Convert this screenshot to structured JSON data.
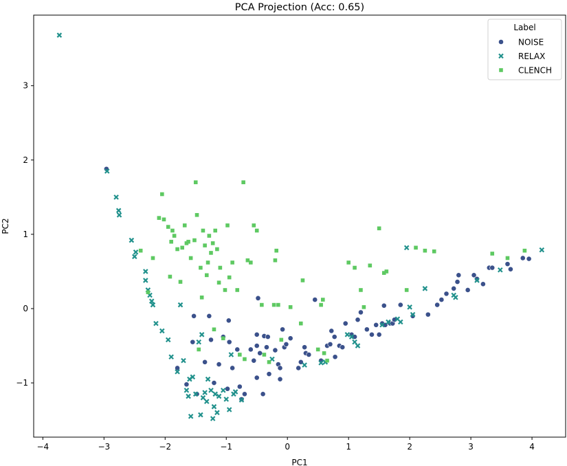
{
  "chart_data": {
    "type": "scatter",
    "title": "PCA Projection (Acc: 0.65)",
    "xlabel": "PC1",
    "ylabel": "PC2",
    "xlim": [
      -4.15,
      4.55
    ],
    "ylim": [
      -1.73,
      3.95
    ],
    "xticks": [
      -4,
      -3,
      -2,
      -1,
      0,
      1,
      2,
      3,
      4
    ],
    "yticks": [
      -1,
      0,
      1,
      2,
      3
    ],
    "grid": false,
    "legend": {
      "title": "Label",
      "position": "top-right"
    },
    "series": [
      {
        "name": "NOISE",
        "marker": "circle",
        "color": "#3b518b",
        "points": [
          [
            -2.96,
            1.88
          ],
          [
            -1.8,
            -0.8
          ],
          [
            -1.55,
            -0.45
          ],
          [
            -1.53,
            -0.1
          ],
          [
            -1.28,
            -0.1
          ],
          [
            -1.65,
            -1.02
          ],
          [
            -1.48,
            -1.15
          ],
          [
            -1.35,
            -0.72
          ],
          [
            -1.25,
            -0.42
          ],
          [
            -1.2,
            -1.0
          ],
          [
            -1.12,
            -0.75
          ],
          [
            -1.05,
            -0.38
          ],
          [
            -0.95,
            -0.45
          ],
          [
            -0.98,
            -1.08
          ],
          [
            -0.96,
            -0.16
          ],
          [
            -0.9,
            -0.8
          ],
          [
            -0.82,
            -0.55
          ],
          [
            -0.78,
            -1.05
          ],
          [
            -0.75,
            -1.22
          ],
          [
            -0.7,
            -1.15
          ],
          [
            -0.6,
            -0.55
          ],
          [
            -0.55,
            -0.7
          ],
          [
            -0.5,
            -0.35
          ],
          [
            -0.5,
            -0.5
          ],
          [
            -0.5,
            -0.93
          ],
          [
            -0.48,
            0.14
          ],
          [
            -0.45,
            -0.6
          ],
          [
            -0.4,
            -1.15
          ],
          [
            -0.38,
            -0.37
          ],
          [
            -0.34,
            -0.52
          ],
          [
            -0.32,
            -0.38
          ],
          [
            -0.3,
            -0.88
          ],
          [
            -0.2,
            -0.56
          ],
          [
            -0.15,
            -0.75
          ],
          [
            -0.12,
            -0.8
          ],
          [
            -0.12,
            -0.95
          ],
          [
            -0.08,
            -0.28
          ],
          [
            -0.05,
            -0.52
          ],
          [
            -0.02,
            -0.48
          ],
          [
            0.05,
            -0.4
          ],
          [
            0.18,
            -0.8
          ],
          [
            0.22,
            -0.72
          ],
          [
            0.28,
            -0.52
          ],
          [
            0.3,
            -0.6
          ],
          [
            0.35,
            -0.62
          ],
          [
            0.45,
            0.12
          ],
          [
            0.55,
            -0.7
          ],
          [
            0.65,
            -0.5
          ],
          [
            0.7,
            -0.48
          ],
          [
            0.72,
            -0.3
          ],
          [
            0.77,
            -0.38
          ],
          [
            0.78,
            -0.65
          ],
          [
            0.85,
            -0.5
          ],
          [
            0.9,
            -0.52
          ],
          [
            0.95,
            -0.2
          ],
          [
            1.05,
            -0.35
          ],
          [
            1.1,
            -0.38
          ],
          [
            1.15,
            -0.15
          ],
          [
            1.2,
            -0.05
          ],
          [
            1.3,
            -0.28
          ],
          [
            1.38,
            -0.35
          ],
          [
            1.45,
            -0.22
          ],
          [
            1.5,
            -0.35
          ],
          [
            1.55,
            -0.2
          ],
          [
            1.58,
            0.04
          ],
          [
            1.6,
            -0.22
          ],
          [
            1.68,
            -0.2
          ],
          [
            1.72,
            -0.2
          ],
          [
            1.75,
            -0.15
          ],
          [
            1.85,
            0.05
          ],
          [
            2.05,
            -0.1
          ],
          [
            2.3,
            -0.08
          ],
          [
            2.45,
            0.05
          ],
          [
            2.52,
            0.12
          ],
          [
            2.6,
            0.2
          ],
          [
            2.72,
            0.27
          ],
          [
            2.78,
            0.36
          ],
          [
            2.8,
            0.45
          ],
          [
            2.95,
            0.25
          ],
          [
            3.05,
            0.45
          ],
          [
            3.1,
            0.4
          ],
          [
            3.2,
            0.33
          ],
          [
            3.3,
            0.55
          ],
          [
            3.35,
            0.55
          ],
          [
            3.6,
            0.6
          ],
          [
            3.65,
            0.53
          ],
          [
            3.85,
            0.68
          ],
          [
            3.95,
            0.67
          ]
        ]
      },
      {
        "name": "RELAX",
        "marker": "x",
        "color": "#21918c",
        "points": [
          [
            -3.73,
            3.68
          ],
          [
            -2.95,
            1.85
          ],
          [
            -2.8,
            1.5
          ],
          [
            -2.76,
            1.32
          ],
          [
            -2.75,
            1.26
          ],
          [
            -2.55,
            0.92
          ],
          [
            -2.5,
            0.7
          ],
          [
            -2.48,
            0.76
          ],
          [
            -2.32,
            0.5
          ],
          [
            -2.32,
            0.38
          ],
          [
            -2.28,
            0.25
          ],
          [
            -2.25,
            0.18
          ],
          [
            -2.22,
            0.1
          ],
          [
            -2.2,
            0.05
          ],
          [
            -2.15,
            -0.2
          ],
          [
            -2.05,
            -0.3
          ],
          [
            -1.95,
            -0.42
          ],
          [
            -1.9,
            -0.65
          ],
          [
            -1.8,
            -0.85
          ],
          [
            -1.75,
            0.05
          ],
          [
            -1.7,
            -0.7
          ],
          [
            -1.65,
            -1.1
          ],
          [
            -1.62,
            -1.18
          ],
          [
            -1.6,
            -0.95
          ],
          [
            -1.58,
            -1.45
          ],
          [
            -1.55,
            -0.92
          ],
          [
            -1.5,
            -1.15
          ],
          [
            -1.45,
            -0.45
          ],
          [
            -1.42,
            -1.43
          ],
          [
            -1.4,
            -0.35
          ],
          [
            -1.38,
            -1.2
          ],
          [
            -1.35,
            -1.13
          ],
          [
            -1.32,
            -1.25
          ],
          [
            -1.3,
            -0.95
          ],
          [
            -1.25,
            -1.1
          ],
          [
            -1.22,
            -1.48
          ],
          [
            -1.2,
            -1.32
          ],
          [
            -1.18,
            -1.15
          ],
          [
            -1.15,
            -1.4
          ],
          [
            -1.12,
            -1.18
          ],
          [
            -1.05,
            -1.1
          ],
          [
            -1.0,
            -1.22
          ],
          [
            -0.95,
            -1.36
          ],
          [
            -0.92,
            -0.62
          ],
          [
            -0.88,
            -1.15
          ],
          [
            -0.85,
            -1.12
          ],
          [
            -0.75,
            -1.23
          ],
          [
            -0.25,
            -0.68
          ],
          [
            0.28,
            -0.76
          ],
          [
            0.55,
            -0.73
          ],
          [
            0.62,
            -0.72
          ],
          [
            0.98,
            -0.35
          ],
          [
            1.05,
            -0.38
          ],
          [
            1.1,
            -0.45
          ],
          [
            1.15,
            -0.5
          ],
          [
            1.55,
            -0.22
          ],
          [
            1.65,
            -0.18
          ],
          [
            1.8,
            -0.14
          ],
          [
            1.85,
            -0.18
          ],
          [
            1.95,
            0.82
          ],
          [
            2.0,
            0.02
          ],
          [
            2.05,
            -0.08
          ],
          [
            2.25,
            0.27
          ],
          [
            2.72,
            0.18
          ],
          [
            2.75,
            0.15
          ],
          [
            3.1,
            0.38
          ],
          [
            3.48,
            0.52
          ],
          [
            4.16,
            0.79
          ]
        ]
      },
      {
        "name": "CLENCH",
        "marker": "square",
        "color": "#5ec962",
        "points": [
          [
            -2.4,
            0.78
          ],
          [
            -2.28,
            0.22
          ],
          [
            -2.2,
            0.68
          ],
          [
            -2.1,
            1.22
          ],
          [
            -2.05,
            1.54
          ],
          [
            -2.02,
            1.2
          ],
          [
            -1.95,
            1.1
          ],
          [
            -1.92,
            0.43
          ],
          [
            -1.9,
            0.9
          ],
          [
            -1.88,
            1.05
          ],
          [
            -1.85,
            0.98
          ],
          [
            -1.8,
            0.8
          ],
          [
            -1.75,
            0.36
          ],
          [
            -1.72,
            0.82
          ],
          [
            -1.68,
            1.12
          ],
          [
            -1.65,
            0.88
          ],
          [
            -1.62,
            0.9
          ],
          [
            -1.58,
            0.68
          ],
          [
            -1.52,
            0.92
          ],
          [
            -1.5,
            1.7
          ],
          [
            -1.48,
            1.26
          ],
          [
            -1.45,
            -0.55
          ],
          [
            -1.42,
            0.55
          ],
          [
            -1.4,
            0.15
          ],
          [
            -1.38,
            1.05
          ],
          [
            -1.35,
            0.85
          ],
          [
            -1.32,
            0.45
          ],
          [
            -1.3,
            0.62
          ],
          [
            -1.28,
            0.98
          ],
          [
            -1.25,
            0.75
          ],
          [
            -1.22,
            0.88
          ],
          [
            -1.2,
            -0.28
          ],
          [
            -1.18,
            1.05
          ],
          [
            -1.15,
            0.8
          ],
          [
            -1.12,
            0.35
          ],
          [
            -1.1,
            0.55
          ],
          [
            -1.05,
            -0.4
          ],
          [
            -1.02,
            0.25
          ],
          [
            -0.98,
            1.12
          ],
          [
            -0.95,
            0.42
          ],
          [
            -0.9,
            0.62
          ],
          [
            -0.82,
            0.25
          ],
          [
            -0.78,
            -0.62
          ],
          [
            -0.72,
            1.7
          ],
          [
            -0.7,
            -0.68
          ],
          [
            -0.65,
            0.65
          ],
          [
            -0.6,
            0.62
          ],
          [
            -0.55,
            1.12
          ],
          [
            -0.5,
            1.05
          ],
          [
            -0.42,
            0.05
          ],
          [
            -0.38,
            -0.62
          ],
          [
            -0.3,
            -0.72
          ],
          [
            -0.22,
            0.05
          ],
          [
            -0.2,
            0.65
          ],
          [
            -0.18,
            0.78
          ],
          [
            -0.15,
            0.05
          ],
          [
            -0.1,
            -0.42
          ],
          [
            0.05,
            0.02
          ],
          [
            0.22,
            -0.2
          ],
          [
            0.25,
            0.38
          ],
          [
            0.5,
            -0.55
          ],
          [
            0.55,
            0.05
          ],
          [
            0.58,
            0.12
          ],
          [
            0.6,
            -0.6
          ],
          [
            0.65,
            -0.7
          ],
          [
            1.0,
            0.62
          ],
          [
            1.1,
            0.55
          ],
          [
            1.2,
            0.25
          ],
          [
            1.25,
            0.02
          ],
          [
            1.35,
            0.58
          ],
          [
            1.5,
            1.08
          ],
          [
            1.58,
            0.48
          ],
          [
            1.62,
            0.5
          ],
          [
            1.95,
            0.25
          ],
          [
            2.1,
            0.82
          ],
          [
            2.25,
            0.78
          ],
          [
            2.4,
            0.77
          ],
          [
            3.35,
            0.74
          ],
          [
            3.6,
            0.68
          ],
          [
            3.88,
            0.78
          ]
        ]
      }
    ]
  }
}
